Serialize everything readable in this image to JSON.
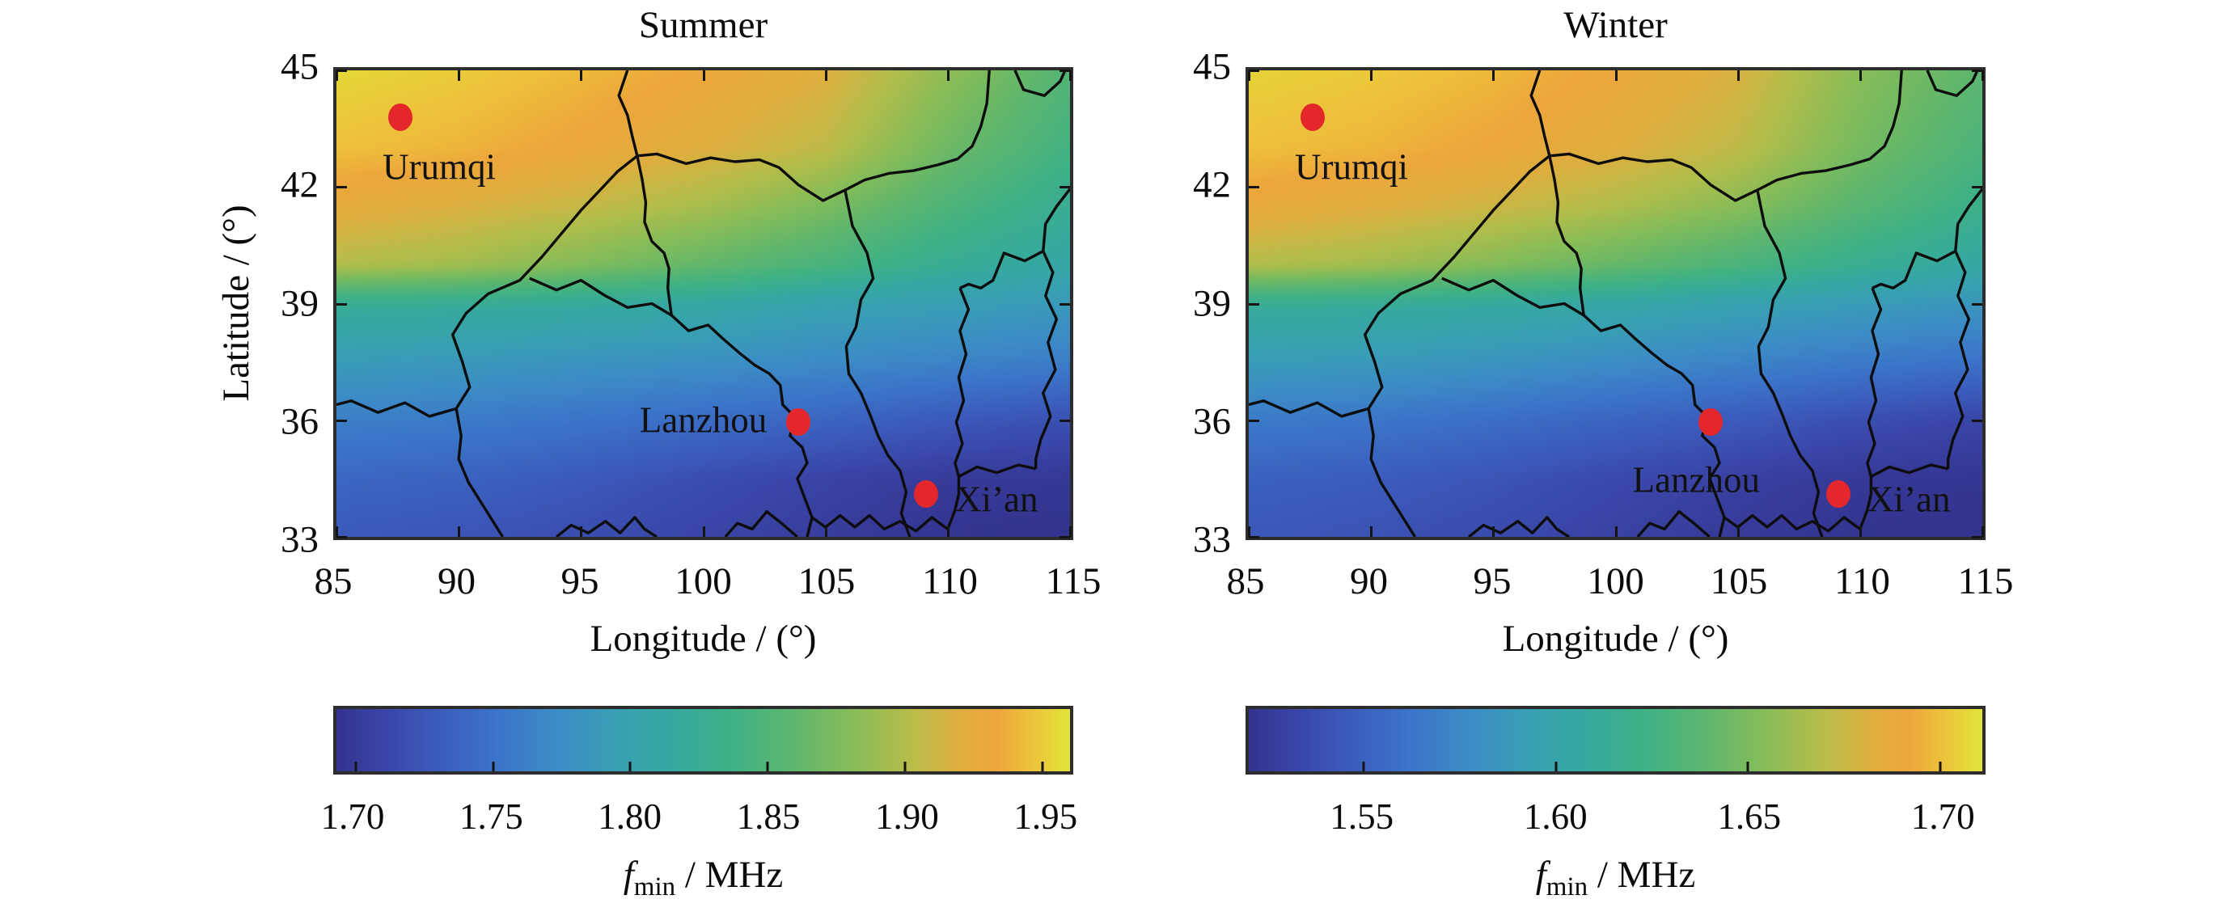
{
  "figure": {
    "background": "#ffffff",
    "text_color": "#0a0a0a"
  },
  "colors": {
    "city_marker": "#e3272b",
    "border_line": "#0d0d0d",
    "axis_frame": "#2d2d2d"
  },
  "colormap": [
    [
      0.0,
      "#34338f"
    ],
    [
      0.07,
      "#3a47a8"
    ],
    [
      0.14,
      "#3b5cbc"
    ],
    [
      0.22,
      "#3b74c8"
    ],
    [
      0.3,
      "#3c8cc6"
    ],
    [
      0.38,
      "#399fb4"
    ],
    [
      0.46,
      "#36a9a0"
    ],
    [
      0.54,
      "#3fb185"
    ],
    [
      0.62,
      "#5cb66f"
    ],
    [
      0.7,
      "#85bc59"
    ],
    [
      0.78,
      "#b5bd4a"
    ],
    [
      0.85,
      "#dfae3e"
    ],
    [
      0.9,
      "#eda63c"
    ],
    [
      0.95,
      "#edc43b"
    ],
    [
      1.0,
      "#dfe437"
    ]
  ],
  "cities": [
    {
      "name": "Urumqi",
      "lon": 87.6,
      "lat": 43.8
    },
    {
      "name": "Lanzhou",
      "lon": 103.9,
      "lat": 35.95
    },
    {
      "name": "Xi’an",
      "lon": 109.1,
      "lat": 34.1
    }
  ],
  "borders": [
    [
      [
        96.9,
        45
      ],
      [
        96.55,
        44.35
      ],
      [
        96.9,
        43.85
      ],
      [
        97.1,
        43.3
      ],
      [
        97.3,
        42.8
      ]
    ],
    [
      [
        97.3,
        42.8
      ],
      [
        98.1,
        42.85
      ],
      [
        99.3,
        42.6
      ],
      [
        100.3,
        42.75
      ],
      [
        101.3,
        42.65
      ],
      [
        102.3,
        42.7
      ],
      [
        103.1,
        42.5
      ],
      [
        103.9,
        42.05
      ],
      [
        104.9,
        41.65
      ],
      [
        105.8,
        41.92
      ],
      [
        106.6,
        42.18
      ],
      [
        107.6,
        42.35
      ],
      [
        108.6,
        42.42
      ],
      [
        109.6,
        42.57
      ],
      [
        110.4,
        42.72
      ],
      [
        111.0,
        43.05
      ],
      [
        111.35,
        43.55
      ],
      [
        111.6,
        44.15
      ],
      [
        111.7,
        45
      ]
    ],
    [
      [
        112.75,
        45
      ],
      [
        113.1,
        44.5
      ],
      [
        113.95,
        44.35
      ],
      [
        114.6,
        44.72
      ],
      [
        114.8,
        45
      ]
    ],
    [
      [
        97.3,
        42.8
      ],
      [
        96.5,
        42.4
      ],
      [
        95.9,
        42.0
      ],
      [
        95.0,
        41.4
      ],
      [
        94.2,
        40.8
      ],
      [
        93.4,
        40.2
      ],
      [
        92.5,
        39.6
      ],
      [
        91.2,
        39.25
      ],
      [
        90.3,
        38.75
      ],
      [
        89.75,
        38.2
      ],
      [
        90.15,
        37.5
      ],
      [
        90.45,
        36.85
      ],
      [
        89.9,
        36.3
      ],
      [
        88.8,
        36.1
      ],
      [
        87.8,
        36.45
      ],
      [
        86.7,
        36.2
      ],
      [
        85.6,
        36.5
      ],
      [
        85,
        36.4
      ]
    ],
    [
      [
        92.9,
        39.65
      ],
      [
        94.0,
        39.35
      ],
      [
        95.0,
        39.6
      ],
      [
        96.0,
        39.2
      ],
      [
        96.9,
        38.9
      ],
      [
        97.9,
        39.0
      ],
      [
        98.7,
        38.7
      ],
      [
        99.4,
        38.3
      ],
      [
        100.2,
        38.45
      ],
      [
        100.8,
        38.1
      ],
      [
        101.5,
        37.72
      ],
      [
        102.1,
        37.42
      ],
      [
        102.7,
        37.2
      ],
      [
        103.15,
        36.9
      ],
      [
        103.25,
        36.4
      ],
      [
        103.75,
        36.08
      ],
      [
        103.55,
        35.6
      ],
      [
        104.05,
        35.3
      ],
      [
        104.25,
        34.9
      ],
      [
        103.85,
        34.5
      ],
      [
        104.15,
        34.0
      ],
      [
        104.45,
        33.5
      ],
      [
        104.25,
        33.0
      ]
    ],
    [
      [
        89.9,
        36.3
      ],
      [
        90.1,
        35.6
      ],
      [
        90.0,
        35.0
      ],
      [
        90.4,
        34.4
      ],
      [
        91.0,
        33.8
      ],
      [
        91.5,
        33.3
      ],
      [
        91.8,
        33.0
      ]
    ],
    [
      [
        105.8,
        41.92
      ],
      [
        106.1,
        41.0
      ],
      [
        106.7,
        40.3
      ],
      [
        106.95,
        39.65
      ],
      [
        106.45,
        39.1
      ],
      [
        106.25,
        38.4
      ],
      [
        105.85,
        37.9
      ],
      [
        105.95,
        37.2
      ],
      [
        106.45,
        36.7
      ],
      [
        106.85,
        36.1
      ],
      [
        107.15,
        35.6
      ],
      [
        107.55,
        35.1
      ],
      [
        108.05,
        34.7
      ],
      [
        108.3,
        34.15
      ],
      [
        108.1,
        33.6
      ],
      [
        108.45,
        33.0
      ]
    ],
    [
      [
        110.5,
        39.4
      ],
      [
        110.85,
        38.85
      ],
      [
        110.5,
        38.3
      ],
      [
        110.75,
        37.7
      ],
      [
        110.45,
        37.1
      ],
      [
        110.65,
        36.5
      ],
      [
        110.35,
        35.95
      ],
      [
        110.6,
        35.4
      ],
      [
        110.3,
        34.9
      ],
      [
        110.45,
        34.55
      ],
      [
        111.2,
        34.8
      ],
      [
        112.0,
        34.65
      ],
      [
        112.9,
        34.85
      ],
      [
        113.6,
        34.75
      ]
    ],
    [
      [
        115,
        41.95
      ],
      [
        114.45,
        41.5
      ],
      [
        114.0,
        41.05
      ],
      [
        113.9,
        40.35
      ],
      [
        113.15,
        40.1
      ],
      [
        112.3,
        40.3
      ],
      [
        111.85,
        39.6
      ],
      [
        111.35,
        39.4
      ],
      [
        110.85,
        39.5
      ],
      [
        110.5,
        39.4
      ]
    ],
    [
      [
        113.9,
        40.35
      ],
      [
        114.3,
        39.8
      ],
      [
        114.0,
        39.2
      ],
      [
        114.45,
        38.6
      ],
      [
        114.1,
        38.0
      ],
      [
        114.4,
        37.3
      ],
      [
        113.9,
        36.7
      ],
      [
        114.2,
        36.1
      ],
      [
        113.8,
        35.5
      ],
      [
        113.6,
        35.0
      ],
      [
        113.6,
        34.75
      ]
    ],
    [
      [
        100.9,
        33.0
      ],
      [
        101.4,
        33.35
      ],
      [
        102.0,
        33.2
      ],
      [
        102.6,
        33.65
      ],
      [
        103.2,
        33.35
      ],
      [
        103.85,
        33.0
      ]
    ],
    [
      [
        104.45,
        33.5
      ],
      [
        105.0,
        33.25
      ],
      [
        105.6,
        33.55
      ],
      [
        106.2,
        33.25
      ],
      [
        106.8,
        33.55
      ],
      [
        107.4,
        33.2
      ],
      [
        108.05,
        33.4
      ],
      [
        108.7,
        33.15
      ],
      [
        109.35,
        33.5
      ],
      [
        110.0,
        33.2
      ],
      [
        110.3,
        33.7
      ],
      [
        110.45,
        34.1
      ],
      [
        110.45,
        34.55
      ]
    ],
    [
      [
        97.3,
        42.8
      ],
      [
        97.5,
        42.2
      ],
      [
        97.65,
        41.6
      ],
      [
        97.6,
        41.1
      ],
      [
        97.9,
        40.6
      ],
      [
        98.4,
        40.3
      ],
      [
        98.6,
        39.9
      ],
      [
        98.55,
        39.4
      ],
      [
        98.7,
        38.7
      ]
    ],
    [
      [
        94.0,
        33.0
      ],
      [
        94.6,
        33.3
      ],
      [
        95.3,
        33.1
      ],
      [
        96.0,
        33.4
      ],
      [
        96.6,
        33.1
      ],
      [
        97.2,
        33.5
      ],
      [
        97.6,
        33.2
      ],
      [
        98.1,
        33.0
      ]
    ]
  ],
  "chart_data": [
    {
      "type": "heatmap",
      "title": "Summer",
      "xlabel": "Longitude / (°)",
      "ylabel": "Latitude / (°)",
      "xlim": [
        85,
        115
      ],
      "ylim": [
        33,
        45
      ],
      "x_ticks": [
        85,
        90,
        95,
        100,
        105,
        110,
        115
      ],
      "y_ticks": [
        45,
        42,
        39,
        36,
        33
      ],
      "grid_lon": [
        85,
        90,
        95,
        100,
        105,
        110,
        115
      ],
      "grid_lat": [
        45,
        43,
        41.5,
        40,
        39,
        37.5,
        36,
        34.5,
        33
      ],
      "values_fmin_mhz": [
        [
          1.955,
          1.95,
          1.942,
          1.932,
          1.92,
          1.885,
          1.852
        ],
        [
          1.945,
          1.94,
          1.931,
          1.92,
          1.905,
          1.868,
          1.84
        ],
        [
          1.925,
          1.918,
          1.908,
          1.895,
          1.875,
          1.848,
          1.825
        ],
        [
          1.9,
          1.893,
          1.878,
          1.862,
          1.845,
          1.825,
          1.81
        ],
        [
          1.825,
          1.822,
          1.818,
          1.812,
          1.8,
          1.795,
          1.788
        ],
        [
          1.79,
          1.787,
          1.782,
          1.778,
          1.772,
          1.766,
          1.76
        ],
        [
          1.762,
          1.758,
          1.752,
          1.745,
          1.738,
          1.728,
          1.72
        ],
        [
          1.74,
          1.736,
          1.728,
          1.718,
          1.708,
          1.7,
          1.698
        ],
        [
          1.728,
          1.724,
          1.718,
          1.71,
          1.702,
          1.695,
          1.692
        ]
      ],
      "colorbar": {
        "min": 1.693,
        "max": 1.96,
        "tick_values": [
          1.7,
          1.75,
          1.8,
          1.85,
          1.9,
          1.95
        ],
        "tick_labels": [
          "1.70",
          "1.75",
          "1.80",
          "1.85",
          "1.90",
          "1.95"
        ],
        "label_parts": {
          "symbol": "f",
          "subscript": "min",
          "unit": " / MHz"
        }
      },
      "city_label_offsets": {
        "Urumqi": [
          1.6,
          -1.3
        ],
        "Lanzhou": [
          -3.9,
          0.05
        ],
        "Xi’an": [
          2.9,
          -0.15
        ]
      }
    },
    {
      "type": "heatmap",
      "title": "Winter",
      "xlabel": "Longitude / (°)",
      "ylabel": "",
      "xlim": [
        85,
        115
      ],
      "ylim": [
        33,
        45
      ],
      "x_ticks": [
        85,
        90,
        95,
        100,
        105,
        110,
        115
      ],
      "y_ticks": [
        45,
        42,
        39,
        36,
        33
      ],
      "grid_lon": [
        85,
        90,
        95,
        100,
        105,
        110,
        115
      ],
      "grid_lat": [
        45,
        43,
        41.5,
        40,
        39,
        37.5,
        36,
        34.5,
        33
      ],
      "values_fmin_mhz": [
        [
          1.706,
          1.703,
          1.698,
          1.69,
          1.68,
          1.655,
          1.638
        ],
        [
          1.7,
          1.697,
          1.691,
          1.683,
          1.672,
          1.648,
          1.63
        ],
        [
          1.688,
          1.683,
          1.676,
          1.667,
          1.655,
          1.636,
          1.62
        ],
        [
          1.668,
          1.663,
          1.653,
          1.642,
          1.63,
          1.616,
          1.605
        ],
        [
          1.614,
          1.612,
          1.608,
          1.603,
          1.596,
          1.59,
          1.585
        ],
        [
          1.59,
          1.588,
          1.584,
          1.578,
          1.572,
          1.566,
          1.56
        ],
        [
          1.566,
          1.563,
          1.558,
          1.552,
          1.546,
          1.538,
          1.532
        ],
        [
          1.55,
          1.547,
          1.542,
          1.535,
          1.529,
          1.524,
          1.522
        ],
        [
          1.544,
          1.541,
          1.536,
          1.53,
          1.525,
          1.521,
          1.519
        ]
      ],
      "colorbar": {
        "min": 1.52,
        "max": 1.711,
        "tick_values": [
          1.55,
          1.6,
          1.65,
          1.7
        ],
        "tick_labels": [
          "1.55",
          "1.60",
          "1.65",
          "1.70"
        ],
        "label_parts": {
          "symbol": "f",
          "subscript": "min",
          "unit": " / MHz"
        }
      },
      "city_label_offsets": {
        "Urumqi": [
          1.6,
          -1.3
        ],
        "Lanzhou": [
          -0.6,
          -1.5
        ],
        "Xi’an": [
          2.9,
          -0.15
        ]
      }
    }
  ]
}
